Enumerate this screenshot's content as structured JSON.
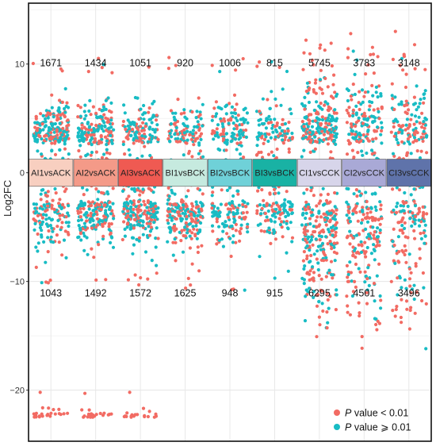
{
  "chart_data": {
    "type": "scatter",
    "ylabel": "Log2FC",
    "ylim": [
      -24.7,
      15.6
    ],
    "yticks": [
      10,
      0,
      -10,
      -20
    ],
    "grid": true,
    "groups": [
      {
        "label": "AI1vsACK",
        "up_count": "1671",
        "down_count": "1043",
        "up": 1671,
        "down": 1043,
        "band_color": "#f8cfc0"
      },
      {
        "label": "AI2vsACK",
        "up_count": "1434",
        "down_count": "1492",
        "up": 1434,
        "down": 1492,
        "band_color": "#f49a88"
      },
      {
        "label": "AI3vsACK",
        "up_count": "1051",
        "down_count": "1572",
        "up": 1051,
        "down": 1572,
        "band_color": "#ef5a52"
      },
      {
        "label": "BI1vsBCK",
        "up_count": "920",
        "down_count": "1625",
        "up": 920,
        "down": 1625,
        "band_color": "#c6eadf"
      },
      {
        "label": "BI2vsBCK",
        "up_count": "1006",
        "down_count": "948",
        "up": 1006,
        "down": 948,
        "band_color": "#6fd1d8"
      },
      {
        "label": "BI3vsBCK",
        "up_count": "815",
        "down_count": "915",
        "up": 815,
        "down": 915,
        "band_color": "#19b2a4"
      },
      {
        "label": "CI1vsCCK",
        "up_count": "5745",
        "down_count": "6295",
        "up": 5745,
        "down": 6295,
        "band_color": "#d7d5ea"
      },
      {
        "label": "CI2vsCCK",
        "up_count": "3783",
        "down_count": "4501",
        "up": 3783,
        "down": 4501,
        "band_color": "#a9a9d6"
      },
      {
        "label": "CI3vsCCK",
        "up_count": "3148",
        "down_count": "3496",
        "up": 3148,
        "down": 3496,
        "band_color": "#5f73aa"
      }
    ],
    "legend": {
      "position": "bottom-right",
      "items": [
        {
          "p": "P",
          "text": " value  < 0.01",
          "color": "#f26b63"
        },
        {
          "p": "P",
          "text": " value ⩾ 0.01",
          "color": "#18bcc4"
        }
      ]
    },
    "colors": {
      "significant": "#f26b63",
      "not_significant": "#18bcc4"
    }
  }
}
